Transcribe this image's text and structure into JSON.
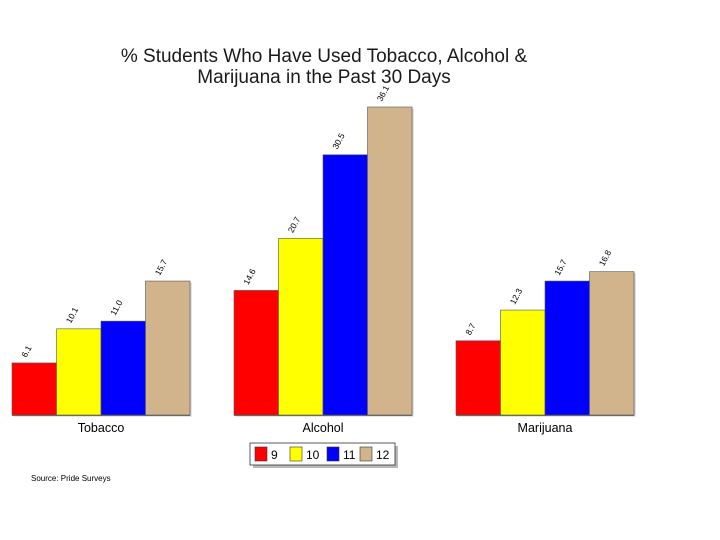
{
  "chart_data": {
    "type": "bar",
    "title": "% Students Who Have Used Tobacco, Alcohol & Marijuana in the Past 30 Days",
    "title_lines": [
      "% Students Who Have Used Tobacco, Alcohol &",
      "Marijuana in the Past 30 Days"
    ],
    "categories": [
      "Tobacco",
      "Alcohol",
      "Marijuana"
    ],
    "series": [
      {
        "name": "9",
        "color": "#ff0000",
        "values": [
          6.1,
          14.6,
          8.7
        ]
      },
      {
        "name": "10",
        "color": "#ffff00",
        "values": [
          10.1,
          20.7,
          12.3
        ]
      },
      {
        "name": "11",
        "color": "#0000ff",
        "values": [
          11.0,
          30.5,
          15.7
        ]
      },
      {
        "name": "12",
        "color": "#d2b48c",
        "values": [
          15.7,
          36.1,
          16.8
        ]
      }
    ],
    "value_labels": [
      [
        "6.1",
        "14.6",
        "8.7"
      ],
      [
        "10.1",
        "20.7",
        "12.3"
      ],
      [
        "11.0",
        "30.5",
        "15.7"
      ],
      [
        "15.7",
        "36.1",
        "16.8"
      ]
    ],
    "ylim": [
      0,
      36.1
    ],
    "grid": false,
    "legend_position": "bottom",
    "source": "Source: Pride Surveys"
  }
}
